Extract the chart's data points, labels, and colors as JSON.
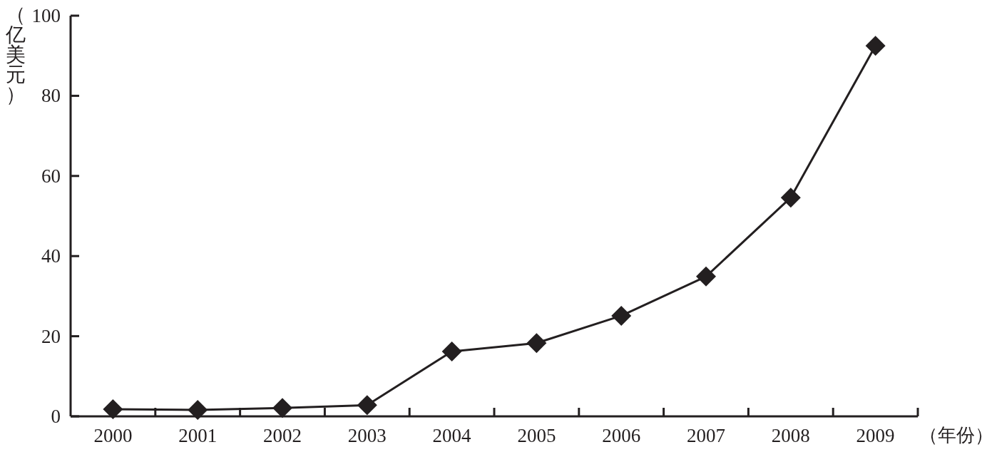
{
  "chart_data": {
    "type": "line",
    "categories": [
      "2000",
      "2001",
      "2002",
      "2003",
      "2004",
      "2005",
      "2006",
      "2007",
      "2008",
      "2009"
    ],
    "values": [
      1.8,
      1.6,
      2.1,
      2.8,
      16.2,
      18.3,
      25.1,
      34.9,
      54.6,
      92.5
    ],
    "color": "#231f20",
    "marker": "diamond",
    "line_style": "solid",
    "ylim": [
      0,
      100
    ],
    "yticks": [
      0,
      20,
      40,
      60,
      80,
      100
    ],
    "xlabel": "（年份）",
    "ylabel": "（亿美元）"
  }
}
